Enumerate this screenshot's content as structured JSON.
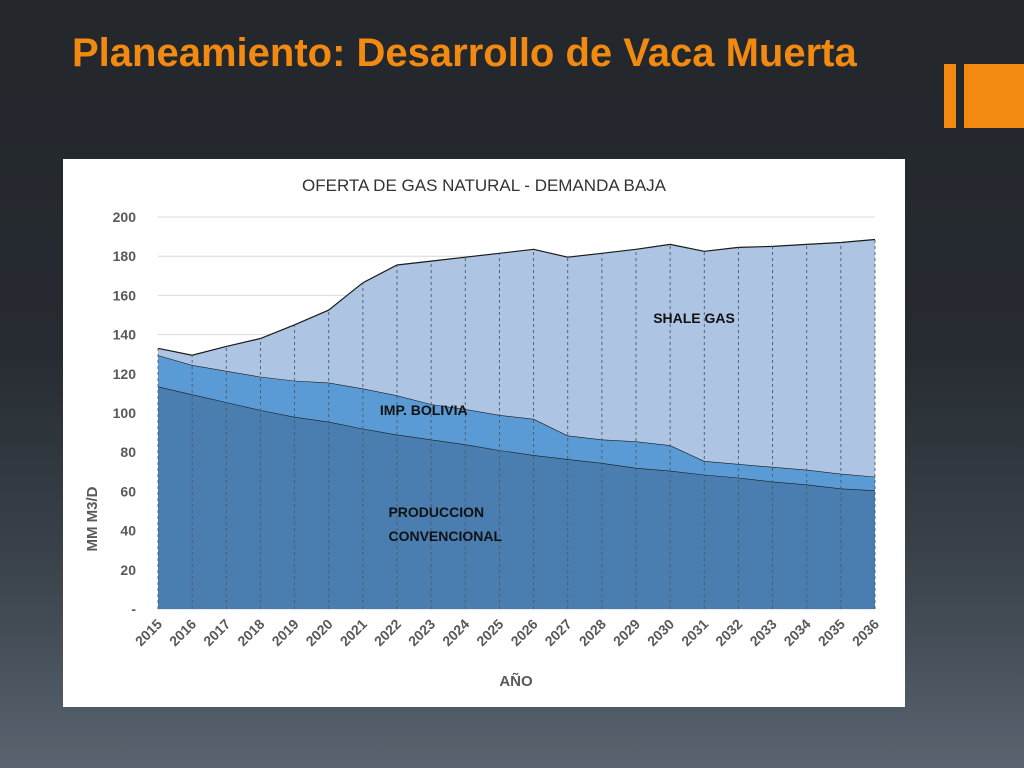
{
  "slide": {
    "title": "Planeamiento: Desarrollo de Vaca Muerta"
  },
  "chart_data": {
    "type": "area",
    "stacked": true,
    "title": "OFERTA DE GAS NATURAL - DEMANDA BAJA",
    "xlabel": "AÑO",
    "ylabel": "MM M3/D",
    "ylim": [
      0,
      200
    ],
    "yticks": [
      0,
      20,
      40,
      60,
      80,
      100,
      120,
      140,
      160,
      180,
      200
    ],
    "ytick_labels": [
      "-",
      "20",
      "40",
      "60",
      "80",
      "100",
      "120",
      "140",
      "160",
      "180",
      "200"
    ],
    "grid": true,
    "x": [
      "2015",
      "2016",
      "2017",
      "2018",
      "2019",
      "2020",
      "2021",
      "2022",
      "2023",
      "2024",
      "2025",
      "2026",
      "2027",
      "2028",
      "2029",
      "2030",
      "2031",
      "2032",
      "2033",
      "2034",
      "2035",
      "2036"
    ],
    "series": [
      {
        "name": "PRODUCCION CONVENCIONAL",
        "color": "#4a7eb0",
        "values": [
          113.5,
          109.5,
          105.5,
          101.5,
          98,
          95.5,
          92,
          89,
          86.5,
          84,
          81,
          78.5,
          76.5,
          74.5,
          72,
          70.5,
          68.5,
          67,
          65,
          63.5,
          61.5,
          60.5
        ]
      },
      {
        "name": "IMP. BOLIVIA",
        "color": "#5b9bd5",
        "values": [
          16,
          15,
          16,
          17,
          18.5,
          20,
          20.5,
          20,
          18,
          18,
          18,
          18.5,
          12,
          12,
          13.5,
          13,
          7,
          7,
          7.5,
          7.5,
          7.5,
          7
        ]
      },
      {
        "name": "SHALE GAS",
        "color": "#adc5e3",
        "values": [
          3.5,
          5,
          12.5,
          19.5,
          28.5,
          37,
          54,
          66.5,
          73,
          77.5,
          82.5,
          86.5,
          91,
          95,
          98,
          102.5,
          107,
          110.5,
          112.5,
          115,
          118,
          121
        ]
      }
    ],
    "annotations": [
      {
        "text": "SHALE GAS",
        "series": "SHALE GAS"
      },
      {
        "text": "IMP. BOLIVIA",
        "series": "IMP. BOLIVIA"
      },
      {
        "text": "PRODUCCION CONVENCIONAL",
        "series": "PRODUCCION CONVENCIONAL",
        "lines": [
          "PRODUCCION",
          "CONVENCIONAL"
        ]
      }
    ]
  }
}
